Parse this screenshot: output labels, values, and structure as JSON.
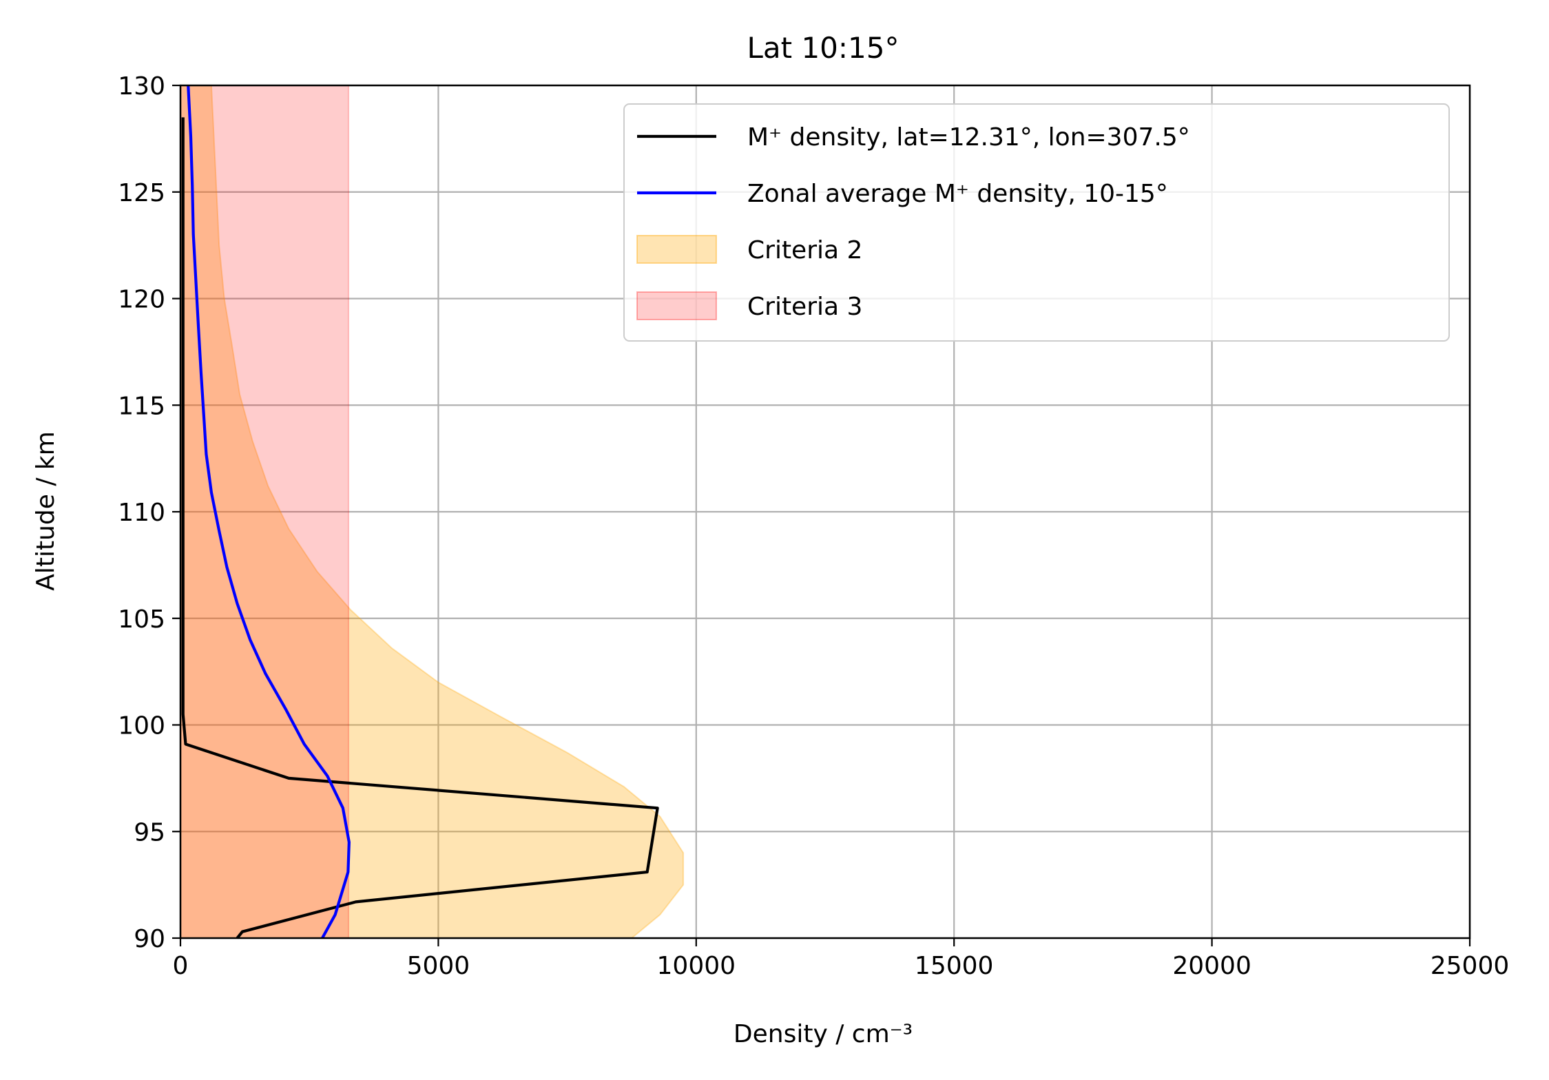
{
  "chart_data": {
    "type": "line",
    "title": "Lat 10:15°",
    "xlabel": "Density / cm⁻³",
    "ylabel": "Altitude / km",
    "xlim": [
      0,
      25000
    ],
    "ylim": [
      90,
      130
    ],
    "xticks": [
      0,
      5000,
      10000,
      15000,
      20000,
      25000
    ],
    "xtick_labels": [
      "0",
      "5000",
      "10000",
      "15000",
      "20000",
      "25000"
    ],
    "yticks": [
      90,
      95,
      100,
      105,
      110,
      115,
      120,
      125,
      130
    ],
    "ytick_labels": [
      "90",
      "95",
      "100",
      "105",
      "110",
      "115",
      "120",
      "125",
      "130"
    ],
    "grid": true,
    "legend_position": "top-right",
    "series": [
      {
        "name": "M⁺ density, lat=12.31°, lon=307.5°",
        "kind": "line",
        "color": "#000000",
        "points": [
          [
            1100,
            90.0
          ],
          [
            1200,
            90.3
          ],
          [
            3400,
            91.7
          ],
          [
            9050,
            93.1
          ],
          [
            9250,
            96.1
          ],
          [
            2100,
            97.5
          ],
          [
            100,
            99.1
          ],
          [
            50,
            100.5
          ],
          [
            50,
            110
          ],
          [
            50,
            128.5
          ]
        ]
      },
      {
        "name": "Zonal average M⁺ density, 10-15°",
        "kind": "line",
        "color": "#0000ff",
        "points": [
          [
            2750,
            90.0
          ],
          [
            3000,
            91.1
          ],
          [
            3250,
            93.1
          ],
          [
            3270,
            94.5
          ],
          [
            3150,
            96.1
          ],
          [
            2850,
            97.6
          ],
          [
            2400,
            99.1
          ],
          [
            2050,
            100.7
          ],
          [
            1650,
            102.4
          ],
          [
            1350,
            104.0
          ],
          [
            1100,
            105.7
          ],
          [
            900,
            107.4
          ],
          [
            750,
            109.1
          ],
          [
            600,
            110.9
          ],
          [
            500,
            112.7
          ],
          [
            450,
            114.6
          ],
          [
            400,
            116.5
          ],
          [
            350,
            118.6
          ],
          [
            300,
            120.8
          ],
          [
            250,
            123.0
          ],
          [
            230,
            125.3
          ],
          [
            200,
            127.6
          ],
          [
            150,
            130.0
          ]
        ]
      },
      {
        "name": "Criteria 2",
        "kind": "fill",
        "color": "#ffa500",
        "opacity": 0.3,
        "points": [
          [
            8750,
            90.0
          ],
          [
            9300,
            91.1
          ],
          [
            9750,
            92.5
          ],
          [
            9750,
            94.0
          ],
          [
            9300,
            95.7
          ],
          [
            8600,
            97.1
          ],
          [
            7500,
            98.7
          ],
          [
            6200,
            100.4
          ],
          [
            5000,
            102.0
          ],
          [
            4100,
            103.6
          ],
          [
            3300,
            105.4
          ],
          [
            2650,
            107.2
          ],
          [
            2100,
            109.2
          ],
          [
            1700,
            111.2
          ],
          [
            1400,
            113.3
          ],
          [
            1150,
            115.5
          ],
          [
            1000,
            117.8
          ],
          [
            850,
            120.0
          ],
          [
            750,
            122.5
          ],
          [
            700,
            125.0
          ],
          [
            650,
            127.5
          ],
          [
            600,
            130.0
          ]
        ]
      },
      {
        "name": "Criteria 3",
        "kind": "fill",
        "color": "#ff0000",
        "opacity": 0.2,
        "points": [
          [
            3260,
            90.0
          ],
          [
            3260,
            130.0
          ]
        ]
      }
    ]
  }
}
